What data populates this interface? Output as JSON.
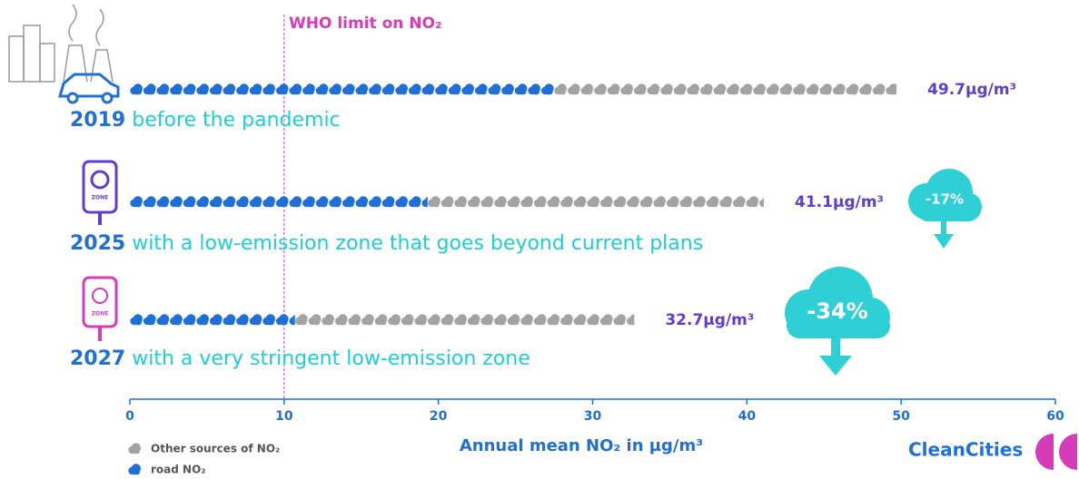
{
  "chart_data": {
    "type": "stacked-bar-horizontal",
    "categories": [
      "2019",
      "2025",
      "2027"
    ],
    "descriptions": [
      "before the pandemic",
      "with a low-emission zone that goes beyond current plans",
      "with a very stringent low-emission zone"
    ],
    "series": [
      {
        "name": "road NO₂",
        "color": "#1f6fd6",
        "values": [
          27.5,
          19.3,
          10.7
        ]
      },
      {
        "name": "Other sources of NO₂",
        "color": "#a3a3a3",
        "values": [
          22.2,
          21.8,
          22.0
        ]
      }
    ],
    "totals": [
      49.7,
      41.1,
      32.7
    ],
    "total_labels": [
      "49.7µg/m³",
      "41.1µg/m³",
      "32.7µg/m³"
    ],
    "annotations": [
      "-17%",
      "-34%"
    ],
    "reference_line": {
      "value": 10,
      "label": "WHO limit on NO₂"
    },
    "xlabel": "Annual mean NO₂ in µg/m³",
    "xlim": [
      0,
      60
    ],
    "xticks": [
      0,
      10,
      20,
      30,
      40,
      50,
      60
    ],
    "logo": "CleanCities"
  }
}
